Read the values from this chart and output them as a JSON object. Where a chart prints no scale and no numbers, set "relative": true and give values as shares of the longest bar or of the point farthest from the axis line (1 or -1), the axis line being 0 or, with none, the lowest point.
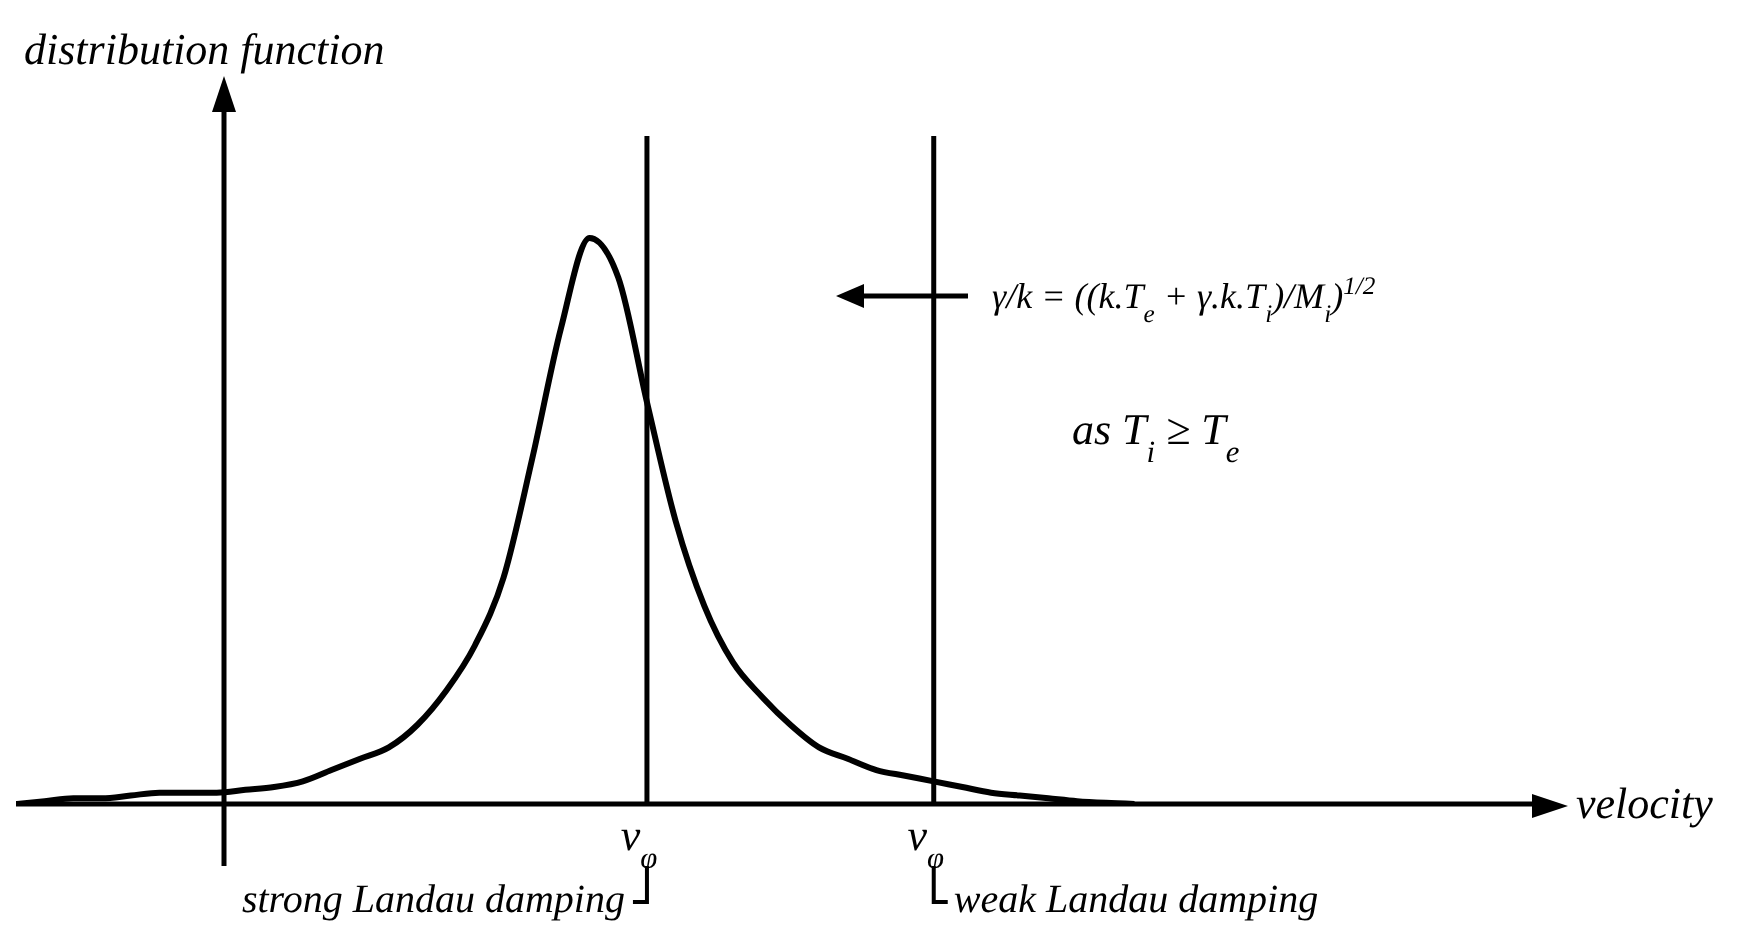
{
  "chart_data": {
    "type": "line",
    "relative": true,
    "ylabel": "distribution function",
    "xlabel": "velocity",
    "categories": [
      null,
      null,
      null,
      null,
      null,
      null,
      null,
      null,
      null,
      null,
      null,
      null,
      null,
      null,
      null,
      null,
      null,
      null,
      null,
      null,
      null,
      null,
      null,
      null,
      null,
      null,
      null,
      null,
      null,
      null,
      null,
      null,
      null,
      null,
      null,
      null,
      null,
      null,
      null,
      null,
      null,
      null,
      null,
      null,
      null,
      null,
      null,
      null,
      null,
      null,
      null,
      null,
      null,
      null
    ],
    "series": [
      {
        "color": "#000000",
        "values": [
          0,
          0.005,
          0.01,
          0.01,
          0.015,
          0.02,
          0.02,
          0.02,
          0.025,
          0.03,
          0.04,
          0.06,
          0.08,
          0.1,
          0.14,
          0.2,
          0.28,
          0.4,
          0.61,
          0.84,
          1,
          0.93,
          0.71,
          0.5,
          0.35,
          0.25,
          0.19,
          0.14,
          0.1,
          0.08,
          0.06,
          0.05,
          0.04,
          0.03,
          0.02,
          0.015,
          0.01,
          0.005,
          0.002,
          0,
          null,
          null,
          null,
          null,
          null,
          null,
          null,
          null,
          null,
          null,
          null,
          null,
          null,
          null
        ]
      }
    ],
    "annotations": [
      "v$_{φ}$",
      "v$_{φ}$",
      "strong Landau damping",
      "weak Landau damping",
      "γ/k = ((k.T$_{e}$ + γ.k.T$_{i}$)/M$_{i}$)$^{1/2}$",
      "as  T$_{i}$ ≥ T$_{e}$"
    ],
    "marker": "none"
  }
}
